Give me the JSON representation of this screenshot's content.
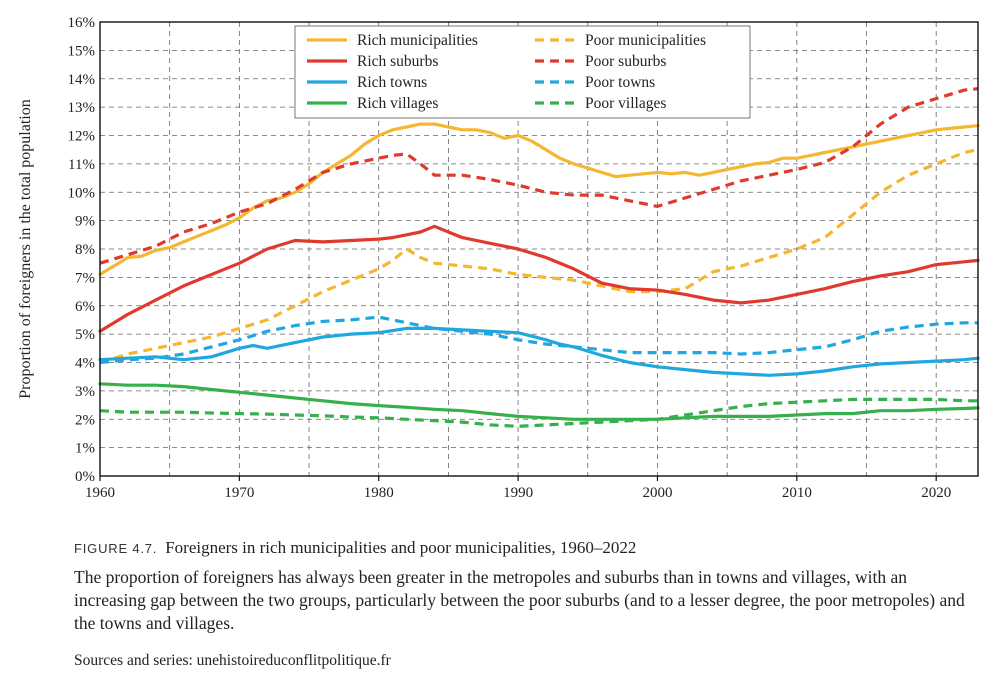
{
  "chart_data": {
    "type": "line",
    "title": "",
    "xlabel": "",
    "ylabel": "Proportion of foreigners in the total population",
    "xlim": [
      1960,
      2023
    ],
    "ylim": [
      0,
      16
    ],
    "x_ticks": [
      "1960",
      "1970",
      "1980",
      "1990",
      "2000",
      "2010",
      "2020"
    ],
    "y_ticks": [
      "0%",
      "1%",
      "2%",
      "3%",
      "4%",
      "5%",
      "6%",
      "7%",
      "8%",
      "9%",
      "10%",
      "11%",
      "12%",
      "13%",
      "14%",
      "15%",
      "16%"
    ],
    "grid": true,
    "legend_position": "top-center",
    "series": [
      {
        "name": "Rich municipalities",
        "color": "#f5b731",
        "dash": false,
        "x": [
          1960,
          1961,
          1962,
          1963,
          1964,
          1965,
          1966,
          1967,
          1968,
          1969,
          1970,
          1971,
          1972,
          1973,
          1974,
          1975,
          1976,
          1977,
          1978,
          1979,
          1980,
          1981,
          1982,
          1983,
          1984,
          1985,
          1986,
          1987,
          1988,
          1989,
          1990,
          1991,
          1992,
          1993,
          1994,
          1995,
          1996,
          1997,
          1998,
          1999,
          2000,
          2001,
          2002,
          2003,
          2004,
          2005,
          2006,
          2007,
          2008,
          2009,
          2010,
          2011,
          2012,
          2013,
          2014,
          2015,
          2016,
          2017,
          2018,
          2019,
          2020,
          2021,
          2022,
          2023
        ],
        "y": [
          7.1,
          7.4,
          7.7,
          7.75,
          7.95,
          8.05,
          8.25,
          8.45,
          8.65,
          8.85,
          9.1,
          9.45,
          9.7,
          9.8,
          10.0,
          10.3,
          10.7,
          11.0,
          11.3,
          11.7,
          12.0,
          12.2,
          12.3,
          12.4,
          12.4,
          12.3,
          12.2,
          12.2,
          12.1,
          11.9,
          12.0,
          11.8,
          11.5,
          11.2,
          11.0,
          10.85,
          10.7,
          10.55,
          10.6,
          10.65,
          10.7,
          10.65,
          10.7,
          10.6,
          10.7,
          10.8,
          10.9,
          11.0,
          11.05,
          11.2,
          11.2,
          11.3,
          11.4,
          11.5,
          11.6,
          11.7,
          11.8,
          11.9,
          12.0,
          12.1,
          12.2,
          12.25,
          12.3,
          12.35
        ]
      },
      {
        "name": "Poor municipalities",
        "color": "#f5b731",
        "dash": true,
        "x": [
          1960,
          1962,
          1964,
          1966,
          1968,
          1970,
          1972,
          1974,
          1976,
          1978,
          1980,
          1981,
          1982,
          1983,
          1984,
          1986,
          1988,
          1990,
          1992,
          1994,
          1996,
          1998,
          2000,
          2002,
          2004,
          2006,
          2008,
          2010,
          2012,
          2014,
          2016,
          2018,
          2020,
          2022,
          2023
        ],
        "y": [
          4.0,
          4.3,
          4.5,
          4.7,
          4.9,
          5.2,
          5.5,
          6.0,
          6.5,
          6.9,
          7.3,
          7.6,
          8.0,
          7.7,
          7.5,
          7.4,
          7.3,
          7.1,
          7.0,
          6.9,
          6.7,
          6.5,
          6.5,
          6.6,
          7.2,
          7.4,
          7.7,
          8.0,
          8.4,
          9.2,
          10.0,
          10.6,
          11.0,
          11.4,
          11.5
        ]
      },
      {
        "name": "Rich suburbs",
        "color": "#e03a2e",
        "dash": false,
        "x": [
          1960,
          1962,
          1964,
          1966,
          1968,
          1970,
          1972,
          1974,
          1976,
          1978,
          1980,
          1981,
          1982,
          1983,
          1984,
          1985,
          1986,
          1988,
          1990,
          1992,
          1994,
          1996,
          1998,
          2000,
          2002,
          2004,
          2006,
          2008,
          2010,
          2012,
          2014,
          2016,
          2018,
          2020,
          2022,
          2023
        ],
        "y": [
          5.1,
          5.7,
          6.2,
          6.7,
          7.1,
          7.5,
          8.0,
          8.3,
          8.25,
          8.3,
          8.35,
          8.4,
          8.5,
          8.6,
          8.8,
          8.6,
          8.4,
          8.2,
          8.0,
          7.7,
          7.3,
          6.8,
          6.6,
          6.55,
          6.4,
          6.2,
          6.1,
          6.2,
          6.4,
          6.6,
          6.85,
          7.05,
          7.2,
          7.45,
          7.55,
          7.6
        ]
      },
      {
        "name": "Poor suburbs",
        "color": "#e03a2e",
        "dash": true,
        "x": [
          1960,
          1962,
          1964,
          1966,
          1968,
          1970,
          1972,
          1974,
          1976,
          1978,
          1980,
          1981,
          1982,
          1983,
          1984,
          1986,
          1988,
          1990,
          1992,
          1994,
          1996,
          1998,
          2000,
          2002,
          2004,
          2006,
          2008,
          2010,
          2012,
          2014,
          2016,
          2018,
          2020,
          2022,
          2023
        ],
        "y": [
          7.5,
          7.8,
          8.1,
          8.6,
          8.9,
          9.3,
          9.6,
          10.1,
          10.7,
          11.0,
          11.2,
          11.3,
          11.35,
          11.0,
          10.6,
          10.6,
          10.45,
          10.25,
          10.0,
          9.9,
          9.9,
          9.7,
          9.5,
          9.8,
          10.1,
          10.4,
          10.6,
          10.8,
          11.05,
          11.6,
          12.4,
          13.0,
          13.3,
          13.6,
          13.65
        ]
      },
      {
        "name": "Rich towns",
        "color": "#1fa8e0",
        "dash": false,
        "x": [
          1960,
          1962,
          1964,
          1966,
          1968,
          1970,
          1971,
          1972,
          1974,
          1976,
          1978,
          1980,
          1982,
          1984,
          1986,
          1988,
          1990,
          1992,
          1993,
          1994,
          1996,
          1998,
          2000,
          2002,
          2004,
          2006,
          2008,
          2010,
          2012,
          2014,
          2016,
          2018,
          2020,
          2022,
          2023
        ],
        "y": [
          4.1,
          4.15,
          4.2,
          4.1,
          4.2,
          4.5,
          4.6,
          4.5,
          4.7,
          4.9,
          5.0,
          5.05,
          5.2,
          5.2,
          5.15,
          5.1,
          5.05,
          4.8,
          4.65,
          4.55,
          4.25,
          4.0,
          3.85,
          3.75,
          3.65,
          3.6,
          3.55,
          3.6,
          3.7,
          3.85,
          3.95,
          4.0,
          4.05,
          4.1,
          4.15
        ]
      },
      {
        "name": "Poor towns",
        "color": "#1fa8e0",
        "dash": true,
        "x": [
          1960,
          1962,
          1964,
          1966,
          1968,
          1970,
          1972,
          1974,
          1976,
          1978,
          1980,
          1982,
          1984,
          1986,
          1988,
          1990,
          1992,
          1994,
          1996,
          1998,
          2000,
          2002,
          2004,
          2006,
          2008,
          2010,
          2012,
          2014,
          2016,
          2018,
          2020,
          2022,
          2023
        ],
        "y": [
          4.0,
          4.1,
          4.15,
          4.3,
          4.55,
          4.8,
          5.1,
          5.3,
          5.45,
          5.5,
          5.6,
          5.4,
          5.2,
          5.1,
          5.0,
          4.8,
          4.65,
          4.55,
          4.45,
          4.35,
          4.35,
          4.35,
          4.35,
          4.3,
          4.35,
          4.45,
          4.55,
          4.8,
          5.1,
          5.25,
          5.35,
          5.4,
          5.4
        ]
      },
      {
        "name": "Rich villages",
        "color": "#35b04a",
        "dash": false,
        "x": [
          1960,
          1962,
          1964,
          1966,
          1968,
          1970,
          1972,
          1974,
          1976,
          1978,
          1980,
          1982,
          1984,
          1986,
          1988,
          1990,
          1992,
          1994,
          1996,
          1998,
          2000,
          2002,
          2004,
          2006,
          2008,
          2010,
          2012,
          2014,
          2016,
          2018,
          2020,
          2022,
          2023
        ],
        "y": [
          3.25,
          3.2,
          3.2,
          3.15,
          3.05,
          2.95,
          2.85,
          2.75,
          2.65,
          2.55,
          2.48,
          2.42,
          2.35,
          2.3,
          2.2,
          2.1,
          2.05,
          2.0,
          2.0,
          2.0,
          2.0,
          2.05,
          2.1,
          2.1,
          2.1,
          2.15,
          2.2,
          2.2,
          2.3,
          2.3,
          2.35,
          2.38,
          2.4
        ]
      },
      {
        "name": "Poor villages",
        "color": "#35b04a",
        "dash": true,
        "x": [
          1960,
          1962,
          1964,
          1966,
          1968,
          1970,
          1972,
          1974,
          1976,
          1978,
          1980,
          1982,
          1984,
          1986,
          1988,
          1990,
          1992,
          1994,
          1996,
          1998,
          2000,
          2002,
          2004,
          2006,
          2008,
          2010,
          2012,
          2014,
          2016,
          2018,
          2020,
          2022,
          2023
        ],
        "y": [
          2.3,
          2.25,
          2.25,
          2.25,
          2.22,
          2.2,
          2.18,
          2.15,
          2.12,
          2.08,
          2.05,
          2.0,
          1.95,
          1.9,
          1.8,
          1.75,
          1.8,
          1.85,
          1.9,
          1.95,
          2.0,
          2.15,
          2.3,
          2.45,
          2.55,
          2.6,
          2.65,
          2.7,
          2.7,
          2.7,
          2.7,
          2.65,
          2.65
        ]
      }
    ]
  },
  "caption": {
    "label": "FIGURE 4.7.",
    "title": "Foreigners in rich municipalities and poor municipalities, 1960–2022",
    "description": "The proportion of foreigners has always been greater in the metropoles and suburbs than in towns and villages, with an increasing gap between the two groups, particularly between the poor suburbs (and to a lesser degree, the poor metropoles) and the towns and villages.",
    "source": "Sources and series: unehistoireduconflitpolitique.fr"
  }
}
